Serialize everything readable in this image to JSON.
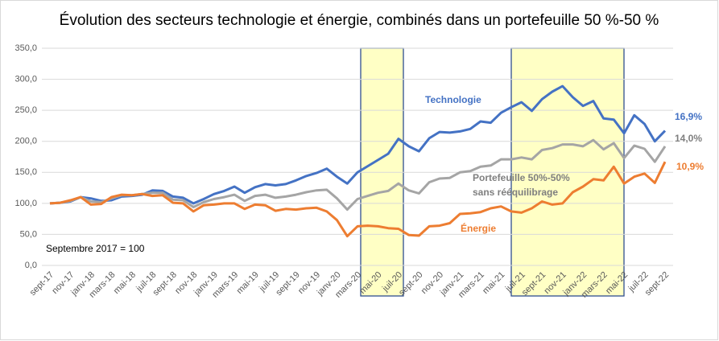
{
  "chart_data": {
    "type": "line",
    "title": "Évolution des secteurs technologie et énergie, combinés dans un portefeuille 50 %-50 %",
    "categories": [
      "sept-17",
      null,
      "nov-17",
      null,
      "janv-18",
      null,
      "mars-18",
      null,
      "mai-18",
      null,
      "juil-18",
      null,
      "sept-18",
      null,
      "nov-18",
      null,
      "janv-19",
      null,
      "mars-19",
      null,
      "mai-19",
      null,
      "juil-19",
      null,
      "sept-19",
      null,
      "nov-19",
      null,
      "janv-20",
      null,
      "mars-20",
      null,
      "mai-20",
      null,
      "juil-20",
      null,
      "sept-20",
      null,
      "nov-20",
      null,
      "janv-21",
      null,
      "mars-21",
      null,
      "mai-21",
      null,
      "juil-21",
      null,
      "sept-21",
      null,
      "nov-21",
      null,
      "janv-22",
      null,
      "mars-22",
      null,
      "mai-22",
      null,
      "juil-22",
      null,
      "sept-22"
    ],
    "series": [
      {
        "name": "Technologie",
        "color": "#4472c4",
        "values": [
          100,
          101,
          103,
          110,
          108,
          104,
          105,
          111,
          112,
          114,
          121,
          120,
          111,
          109,
          100,
          107,
          115,
          120,
          127,
          117,
          126,
          131,
          129,
          131,
          137,
          144,
          149,
          156,
          143,
          132,
          150,
          160,
          170,
          180,
          204,
          192,
          184,
          205,
          215,
          214,
          216,
          220,
          232,
          230,
          246,
          255,
          263,
          249,
          268,
          280,
          289,
          271,
          257,
          265,
          237,
          235,
          213,
          242,
          228,
          200,
          217
        ]
      },
      {
        "name": "Portefeuille 50%-50% sans rééquilibrage",
        "color": "#a5a5a5",
        "values": [
          100,
          101,
          104,
          110,
          103,
          102,
          108,
          113,
          113,
          115,
          117,
          117,
          106,
          105,
          94,
          102,
          107,
          110,
          114,
          104,
          112,
          114,
          109,
          111,
          114,
          118,
          121,
          122,
          108,
          90,
          107,
          112,
          117,
          120,
          132,
          121,
          116,
          134,
          140,
          141,
          150,
          152,
          159,
          161,
          171,
          171,
          174,
          171,
          186,
          189,
          195,
          195,
          192,
          202,
          187,
          197,
          173,
          193,
          188,
          167,
          192
        ]
      },
      {
        "name": "Énergie",
        "color": "#ed7d31",
        "values": [
          100,
          101,
          105,
          110,
          98,
          99,
          110,
          114,
          113,
          115,
          112,
          113,
          101,
          100,
          87,
          97,
          98,
          100,
          100,
          91,
          98,
          97,
          88,
          91,
          90,
          92,
          93,
          87,
          73,
          47,
          63,
          64,
          63,
          60,
          59,
          49,
          48,
          63,
          64,
          68,
          83,
          84,
          86,
          92,
          95,
          87,
          85,
          92,
          103,
          98,
          100,
          118,
          127,
          139,
          137,
          159,
          132,
          143,
          148,
          133,
          167
        ]
      }
    ],
    "annotations": [
      "Technologie",
      "Portefeuille 50%-50%",
      "sans rééquilibrage",
      "Énergie",
      "Septembre 2017 = 100",
      "16,9%",
      "14,0%",
      "10,9%"
    ],
    "ylim": [
      0,
      350
    ],
    "yticks": [
      {
        "value": 0,
        "label": "0,0"
      },
      {
        "value": 50,
        "label": "50,0"
      },
      {
        "value": 100,
        "label": "100,0"
      },
      {
        "value": 150,
        "label": "150,0"
      },
      {
        "value": 200,
        "label": "200,0"
      },
      {
        "value": 250,
        "label": "250,0"
      },
      {
        "value": 300,
        "label": "300,0"
      },
      {
        "value": 350,
        "label": "350,0"
      }
    ],
    "grid": true
  }
}
